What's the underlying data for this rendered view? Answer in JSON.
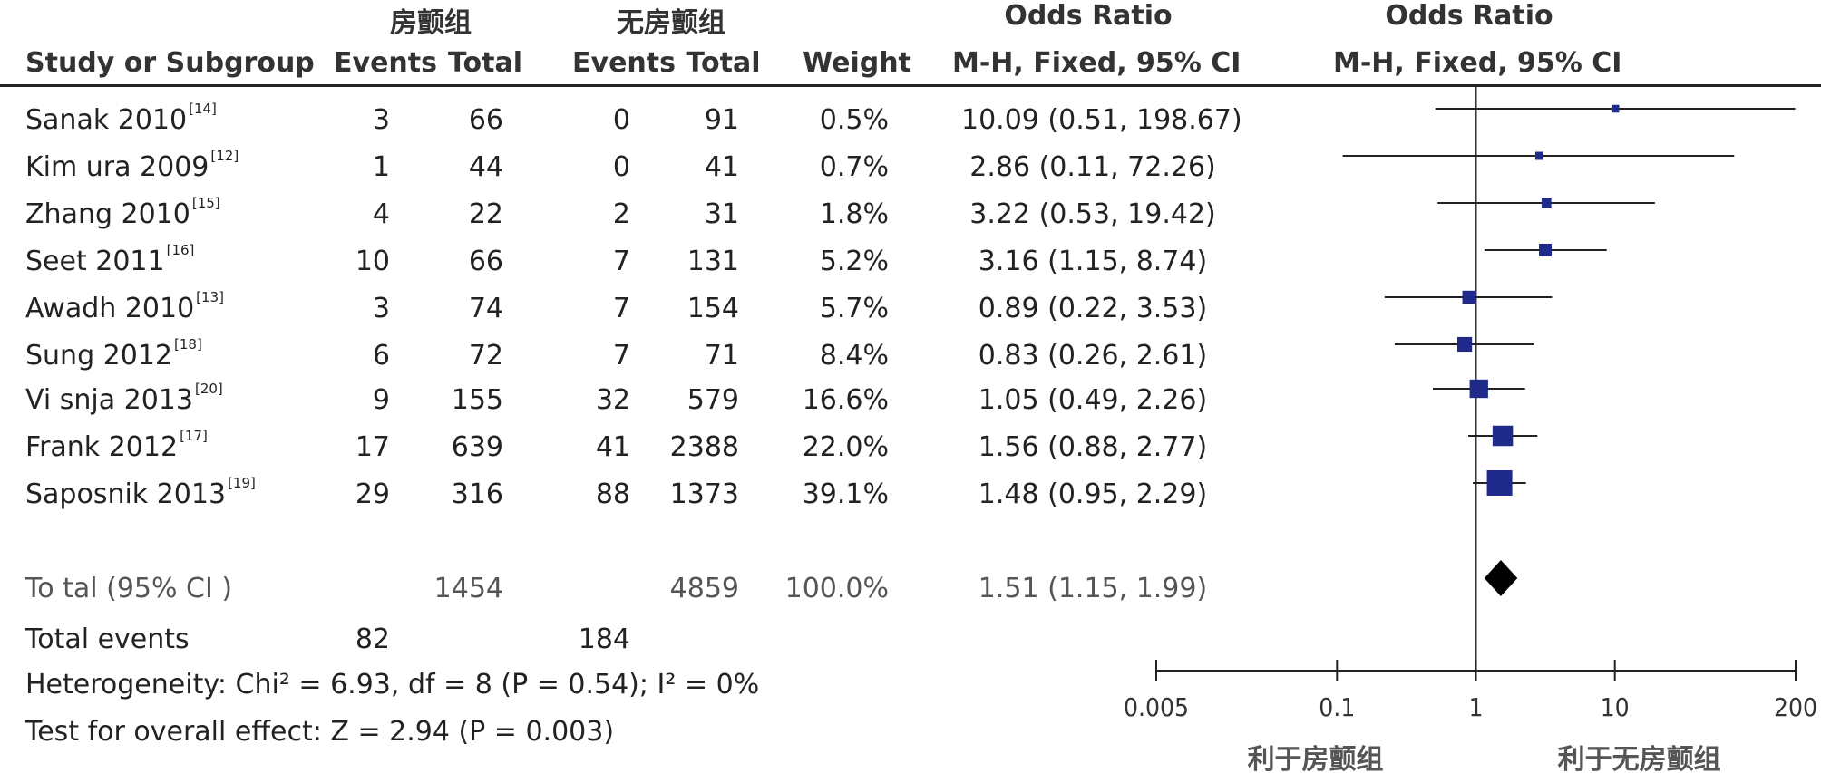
{
  "headers": {
    "group1": "房颤组",
    "group2": "无房颤组",
    "or_group": "Odds Ratio",
    "or_plot_group": "Odds Ratio",
    "study": "Study or Subgroup",
    "events1": "Events",
    "total1": "Total",
    "events2": "Events",
    "total2": "Total",
    "weight": "Weight",
    "or_method": "M-H, Fixed, 95% CI",
    "or_plot_method": "M-H, Fixed, 95% CI"
  },
  "studies": [
    {
      "name": "Sanak 2010",
      "ref": "[14]",
      "events1": "3",
      "total1": "66",
      "events2": "0",
      "total2": "91",
      "weight": "0.5%",
      "ci_text": "10.09 (0.51, 198.67)"
    },
    {
      "name": "Kim ura 2009",
      "ref": "[12]",
      "events1": "1",
      "total1": "44",
      "events2": "0",
      "total2": "41",
      "weight": "0.7%",
      "ci_text": "2.86 (0.11, 72.26)"
    },
    {
      "name": "Zhang 2010",
      "ref": "[15]",
      "events1": "4",
      "total1": "22",
      "events2": "2",
      "total2": "31",
      "weight": "1.8%",
      "ci_text": "3.22 (0.53, 19.42)"
    },
    {
      "name": "Seet 2011",
      "ref": "[16]",
      "events1": "10",
      "total1": "66",
      "events2": "7",
      "total2": "131",
      "weight": "5.2%",
      "ci_text": "3.16 (1.15, 8.74)"
    },
    {
      "name": "Awadh 2010",
      "ref": "[13]",
      "events1": "3",
      "total1": "74",
      "events2": "7",
      "total2": "154",
      "weight": "5.7%",
      "ci_text": "0.89 (0.22, 3.53)"
    },
    {
      "name": "Sung 2012",
      "ref": "[18]",
      "events1": "6",
      "total1": "72",
      "events2": "7",
      "total2": "71",
      "weight": "8.4%",
      "ci_text": "0.83 (0.26, 2.61)"
    },
    {
      "name": "Vi snja 2013",
      "ref": "[20]",
      "events1": "9",
      "total1": "155",
      "events2": "32",
      "total2": "579",
      "weight": "16.6%",
      "ci_text": "1.05 (0.49, 2.26)"
    },
    {
      "name": "Frank 2012",
      "ref": "[17]",
      "events1": "17",
      "total1": "639",
      "events2": "41",
      "total2": "2388",
      "weight": "22.0%",
      "ci_text": "1.56 (0.88, 2.77)"
    },
    {
      "name": "Saposnik 2013",
      "ref": "[19]",
      "events1": "29",
      "total1": "316",
      "events2": "88",
      "total2": "1373",
      "weight": "39.1%",
      "ci_text": "1.48 (0.95, 2.29)"
    }
  ],
  "total": {
    "label": "To tal (95% CI )",
    "total1": "1454",
    "total2": "4859",
    "weight": "100.0%",
    "ci_text": "1.51 (1.15, 1.99)"
  },
  "total_events": {
    "label": "Total events",
    "events1": "82",
    "events2": "184"
  },
  "heterogeneity": "Heterogeneity: Chi² = 6.93, df = 8 (P = 0.54); I² = 0%",
  "overall_effect": "Test for overall effect: Z = 2.94 (P = 0.003)",
  "chart_data": {
    "type": "scatter",
    "subtype": "forest",
    "xscale": "log",
    "xlim": [
      0.005,
      200
    ],
    "x_ticks": [
      0.005,
      0.1,
      1,
      10,
      200
    ],
    "x_tick_labels": [
      "0.005",
      "0.1",
      "1",
      "10",
      "200"
    ],
    "reference_line": 1,
    "favours_left": "利于房颤组",
    "favours_right": "利于无房颤组",
    "studies": [
      {
        "or": 10.09,
        "lower": 0.51,
        "upper": 198.67,
        "weight": 0.5
      },
      {
        "or": 2.86,
        "lower": 0.11,
        "upper": 72.26,
        "weight": 0.7
      },
      {
        "or": 3.22,
        "lower": 0.53,
        "upper": 19.42,
        "weight": 1.8
      },
      {
        "or": 3.16,
        "lower": 1.15,
        "upper": 8.74,
        "weight": 5.2
      },
      {
        "or": 0.89,
        "lower": 0.22,
        "upper": 3.53,
        "weight": 5.7
      },
      {
        "or": 0.83,
        "lower": 0.26,
        "upper": 2.61,
        "weight": 8.4
      },
      {
        "or": 1.05,
        "lower": 0.49,
        "upper": 2.26,
        "weight": 16.6
      },
      {
        "or": 1.56,
        "lower": 0.88,
        "upper": 2.77,
        "weight": 22.0
      },
      {
        "or": 1.48,
        "lower": 0.95,
        "upper": 2.29,
        "weight": 39.1
      }
    ],
    "pooled": {
      "or": 1.51,
      "lower": 1.15,
      "upper": 1.99
    },
    "marker_color": "#1f2a8a"
  }
}
